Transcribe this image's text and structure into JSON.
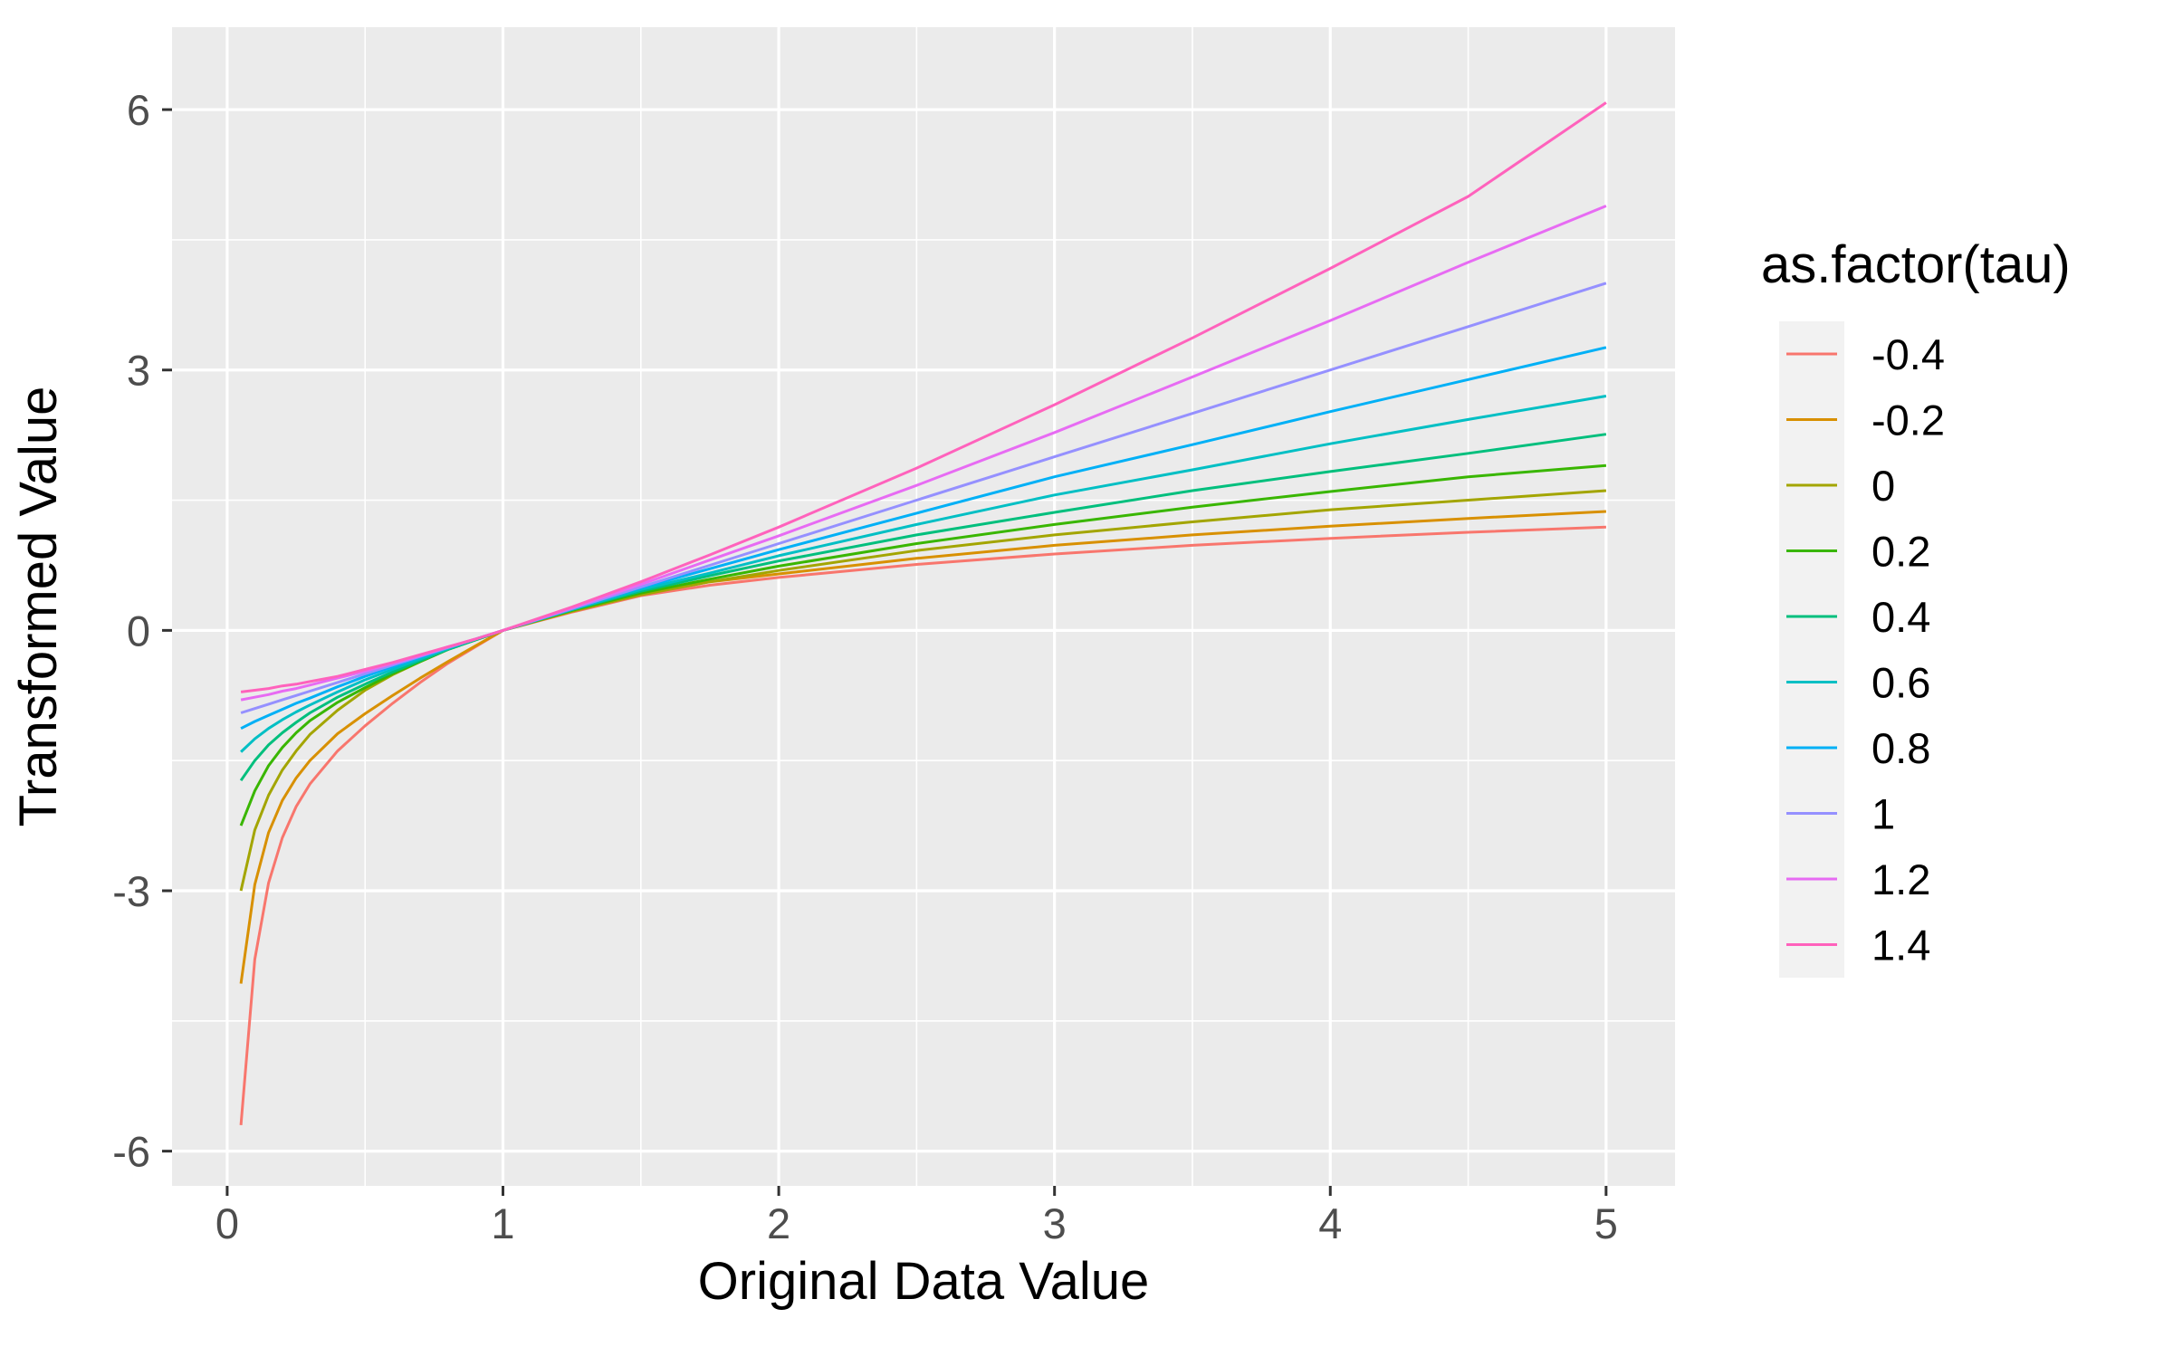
{
  "chart_data": {
    "type": "line",
    "title": "",
    "xlabel": "Original Data Value",
    "ylabel": "Transformed Value",
    "xlim": [
      -0.2,
      5.25
    ],
    "ylim": [
      -6.4,
      6.95
    ],
    "x_ticks": [
      0,
      1,
      2,
      3,
      4,
      5
    ],
    "x_tick_labels": [
      "0",
      "1",
      "2",
      "3",
      "4",
      "5"
    ],
    "y_ticks": [
      -6,
      -3,
      0,
      3,
      6
    ],
    "y_tick_labels": [
      "-6",
      "-3",
      "0",
      "3",
      "6"
    ],
    "x_minor_ticks": [
      0.5,
      1.5,
      2.5,
      3.5,
      4.5
    ],
    "y_minor_ticks": [
      -4.5,
      -1.5,
      1.5,
      4.5
    ],
    "grid": true,
    "x": [
      0.05,
      0.1,
      0.15,
      0.2,
      0.25,
      0.3,
      0.4,
      0.5,
      0.6,
      0.7,
      0.8,
      0.9,
      1.0,
      1.25,
      1.5,
      1.75,
      2.0,
      2.5,
      3.0,
      3.5,
      4.0,
      4.5,
      5.0
    ],
    "legend": {
      "title": "as.factor(tau)",
      "position": "right"
    },
    "series": [
      {
        "name": "-0.4",
        "color": "#F8766D",
        "values": [
          -5.7,
          -3.79,
          -2.91,
          -2.39,
          -2.03,
          -1.77,
          -1.39,
          -1.1,
          -0.84,
          -0.6,
          -0.38,
          -0.19,
          0.0,
          0.21,
          0.4,
          0.52,
          0.61,
          0.76,
          0.88,
          0.98,
          1.06,
          1.13,
          1.19
        ]
      },
      {
        "name": "-0.2",
        "color": "#D89000",
        "values": [
          -4.07,
          -2.93,
          -2.33,
          -1.96,
          -1.7,
          -1.5,
          -1.19,
          -0.96,
          -0.75,
          -0.55,
          -0.36,
          -0.18,
          0.0,
          0.22,
          0.42,
          0.56,
          0.65,
          0.83,
          0.98,
          1.1,
          1.2,
          1.29,
          1.37
        ]
      },
      {
        "name": "0",
        "color": "#A3A500",
        "values": [
          -3.0,
          -2.3,
          -1.9,
          -1.61,
          -1.39,
          -1.2,
          -0.92,
          -0.69,
          -0.51,
          -0.36,
          -0.22,
          -0.11,
          0.0,
          0.22,
          0.41,
          0.56,
          0.69,
          0.92,
          1.1,
          1.25,
          1.39,
          1.5,
          1.61
        ]
      },
      {
        "name": "0.2",
        "color": "#39B600",
        "values": [
          -2.25,
          -1.85,
          -1.56,
          -1.35,
          -1.18,
          -1.04,
          -0.83,
          -0.66,
          -0.5,
          -0.36,
          -0.22,
          -0.11,
          0.0,
          0.23,
          0.43,
          0.59,
          0.74,
          1.0,
          1.22,
          1.42,
          1.6,
          1.77,
          1.9
        ]
      },
      {
        "name": "0.4",
        "color": "#00BF7D",
        "values": [
          -1.73,
          -1.5,
          -1.32,
          -1.18,
          -1.06,
          -0.95,
          -0.77,
          -0.62,
          -0.48,
          -0.35,
          -0.22,
          -0.11,
          0.0,
          0.24,
          0.45,
          0.63,
          0.8,
          1.1,
          1.36,
          1.61,
          1.83,
          2.04,
          2.26
        ]
      },
      {
        "name": "0.6",
        "color": "#00BFC4",
        "values": [
          -1.4,
          -1.25,
          -1.13,
          -1.03,
          -0.94,
          -0.86,
          -0.71,
          -0.57,
          -0.45,
          -0.33,
          -0.21,
          -0.1,
          0.0,
          0.24,
          0.47,
          0.66,
          0.86,
          1.22,
          1.56,
          1.85,
          2.15,
          2.43,
          2.7
        ]
      },
      {
        "name": "0.8",
        "color": "#00B0F6",
        "values": [
          -1.13,
          -1.05,
          -0.98,
          -0.91,
          -0.84,
          -0.78,
          -0.65,
          -0.53,
          -0.42,
          -0.31,
          -0.2,
          -0.1,
          0.0,
          0.25,
          0.49,
          0.71,
          0.93,
          1.35,
          1.77,
          2.14,
          2.52,
          2.89,
          3.26
        ]
      },
      {
        "name": "1",
        "color": "#9590FF",
        "values": [
          -0.95,
          -0.9,
          -0.85,
          -0.8,
          -0.75,
          -0.7,
          -0.6,
          -0.5,
          -0.4,
          -0.3,
          -0.2,
          -0.1,
          0.0,
          0.25,
          0.5,
          0.75,
          1.0,
          1.5,
          2.0,
          2.5,
          3.0,
          3.5,
          4.0
        ]
      },
      {
        "name": "1.2",
        "color": "#E76BF3",
        "values": [
          -0.8,
          -0.77,
          -0.74,
          -0.7,
          -0.67,
          -0.63,
          -0.55,
          -0.47,
          -0.38,
          -0.29,
          -0.19,
          -0.1,
          0.0,
          0.26,
          0.53,
          0.81,
          1.09,
          1.67,
          2.28,
          2.92,
          3.57,
          4.24,
          4.89
        ]
      },
      {
        "name": "1.4",
        "color": "#FF62BC",
        "values": [
          -0.71,
          -0.69,
          -0.67,
          -0.64,
          -0.62,
          -0.59,
          -0.53,
          -0.45,
          -0.37,
          -0.28,
          -0.19,
          -0.1,
          0.0,
          0.27,
          0.56,
          0.87,
          1.19,
          1.87,
          2.6,
          3.37,
          4.17,
          5.0,
          6.08
        ]
      }
    ]
  }
}
